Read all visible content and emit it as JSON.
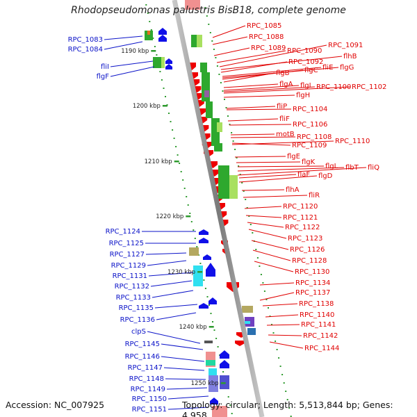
{
  "title": "Rhodopseudomonas palustris BisB18, complete genome",
  "footer": {
    "accession": "Accession: NC_007925",
    "summary": "Topology: circular; Length: 5,513,844 bp; Genes: 4,958"
  },
  "colors": {
    "backbone": "#8c8c8c",
    "tick": "#2e9a2e",
    "label_left": "#0a12c8",
    "label_right": "#e00000",
    "gene_forward": "#1010e8",
    "gene_reverse": "#ee0000",
    "feature_green": "#2ea82e",
    "feature_light_green": "#a8e060",
    "feature_cyan": "#30e0f0",
    "feature_olive": "#b4a860",
    "feature_pink": "#f09090"
  },
  "scale_labels": [
    "1190 kbp",
    "1200 kbp",
    "1210 kbp",
    "1220 kbp",
    "1230 kbp",
    "1240 kbp",
    "1250 kbp"
  ],
  "left_labels": [
    "RPC_1083",
    "RPC_1084",
    "fliI",
    "flgF",
    "RPC_1124",
    "RPC_1125",
    "RPC_1127",
    "RPC_1129",
    "RPC_1131",
    "RPC_1132",
    "RPC_1133",
    "RPC_1135",
    "RPC_1136",
    "clpS",
    "RPC_1145",
    "RPC_1146",
    "RPC_1147",
    "RPC_1148",
    "RPC_1149",
    "RPC_1150",
    "RPC_1151"
  ],
  "right_labels": [
    "RPC_1085",
    "RPC_1088",
    "RPC_1089",
    "RPC_1090",
    "RPC_1091",
    "flhB",
    "RPC_1092",
    "fliE",
    "flgG",
    "flgC",
    "flgB",
    "flgI",
    "flgA",
    "RPC_1100",
    "RPC_1102",
    "flgH",
    "fliP",
    "RPC_1104",
    "fliF",
    "RPC_1106",
    "motB",
    "RPC_1108",
    "RPC_1109",
    "RPC_1110",
    "flgE",
    "flgK",
    "flgL",
    "flbT",
    "fliQ",
    "flaF",
    "flgD",
    "flhA",
    "fliR",
    "RPC_1120",
    "RPC_1121",
    "RPC_1122",
    "RPC_1123",
    "RPC_1126",
    "RPC_1128",
    "RPC_1130",
    "RPC_1134",
    "RPC_1137",
    "RPC_1138",
    "RPC_1140",
    "RPC_1141",
    "RPC_1142",
    "RPC_1144"
  ]
}
